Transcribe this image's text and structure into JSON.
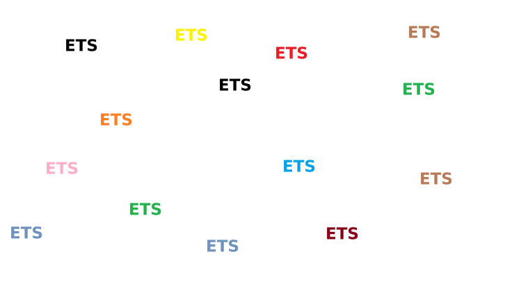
{
  "words": [
    {
      "text": "ETS",
      "color": "#000000"
    },
    {
      "text": "ETS",
      "color": "#FFF200"
    },
    {
      "text": "ETS",
      "color": "#ED1C24"
    },
    {
      "text": "ETS",
      "color": "#B97A57"
    },
    {
      "text": "ETS",
      "color": "#000000"
    },
    {
      "text": "ETS",
      "color": "#22B14C"
    },
    {
      "text": "ETS",
      "color": "#FF7F27"
    },
    {
      "text": "ETS",
      "color": "#FFAEC9"
    },
    {
      "text": "ETS",
      "color": "#00A2E8"
    },
    {
      "text": "ETS",
      "color": "#B97A57"
    },
    {
      "text": "ETS",
      "color": "#22B14C"
    },
    {
      "text": "ETS",
      "color": "#7092BE"
    },
    {
      "text": "ETS",
      "color": "#880015"
    },
    {
      "text": "ETS",
      "color": "#7092BE"
    }
  ]
}
